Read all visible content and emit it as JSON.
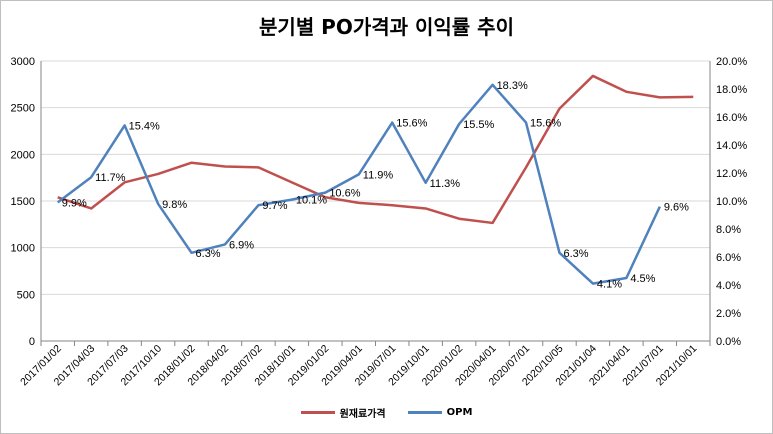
{
  "title": "분기별 PO가격과 이익률 추이",
  "chart_data": {
    "type": "line",
    "title": "분기별 PO가격과 이익률 추이",
    "categories": [
      "2017/01/02",
      "2017/04/03",
      "2017/07/03",
      "2017/10/10",
      "2018/01/02",
      "2018/04/02",
      "2018/07/02",
      "2018/10/01",
      "2019/01/02",
      "2019/04/01",
      "2019/07/01",
      "2019/10/01",
      "2020/01/02",
      "2020/04/01",
      "2020/07/01",
      "2020/10/05",
      "2021/01/04",
      "2021/04/01",
      "2021/07/01",
      "2021/10/01"
    ],
    "y_left": {
      "min": 0,
      "max": 3000,
      "step": 500,
      "ticks": [
        "0",
        "500",
        "1000",
        "1500",
        "2000",
        "2500",
        "3000"
      ]
    },
    "y_right": {
      "min": 0,
      "max": 0.2,
      "step": 0.02,
      "ticks": [
        "0.0%",
        "2.0%",
        "4.0%",
        "6.0%",
        "8.0%",
        "10.0%",
        "12.0%",
        "14.0%",
        "16.0%",
        "18.0%",
        "20.0%"
      ]
    },
    "grid": true,
    "legend_position": "bottom",
    "series": [
      {
        "name": "원재료가격",
        "axis": "left",
        "color": "#c0504d",
        "values": [
          1540,
          1420,
          1700,
          1790,
          1910,
          1870,
          1860,
          1700,
          1540,
          1480,
          1455,
          1420,
          1310,
          1265,
          1860,
          2490,
          2840,
          2670,
          2610,
          2615
        ]
      },
      {
        "name": "OPM",
        "axis": "right",
        "color": "#4f81bd",
        "values": [
          0.099,
          0.117,
          0.154,
          0.098,
          0.063,
          0.069,
          0.097,
          0.101,
          0.106,
          0.119,
          0.156,
          0.113,
          0.155,
          0.183,
          0.156,
          0.063,
          0.041,
          0.045,
          0.096,
          null
        ],
        "labels": [
          "9.9%",
          "11.7%",
          "15.4%",
          "9.8%",
          "6.3%",
          "6.9%",
          "9.7%",
          "10.1%",
          "10.6%",
          "11.9%",
          "15.6%",
          "11.3%",
          "15.5%",
          "18.3%",
          "15.6%",
          "6.3%",
          "4.1%",
          "4.5%",
          "9.6%",
          ""
        ]
      }
    ]
  }
}
